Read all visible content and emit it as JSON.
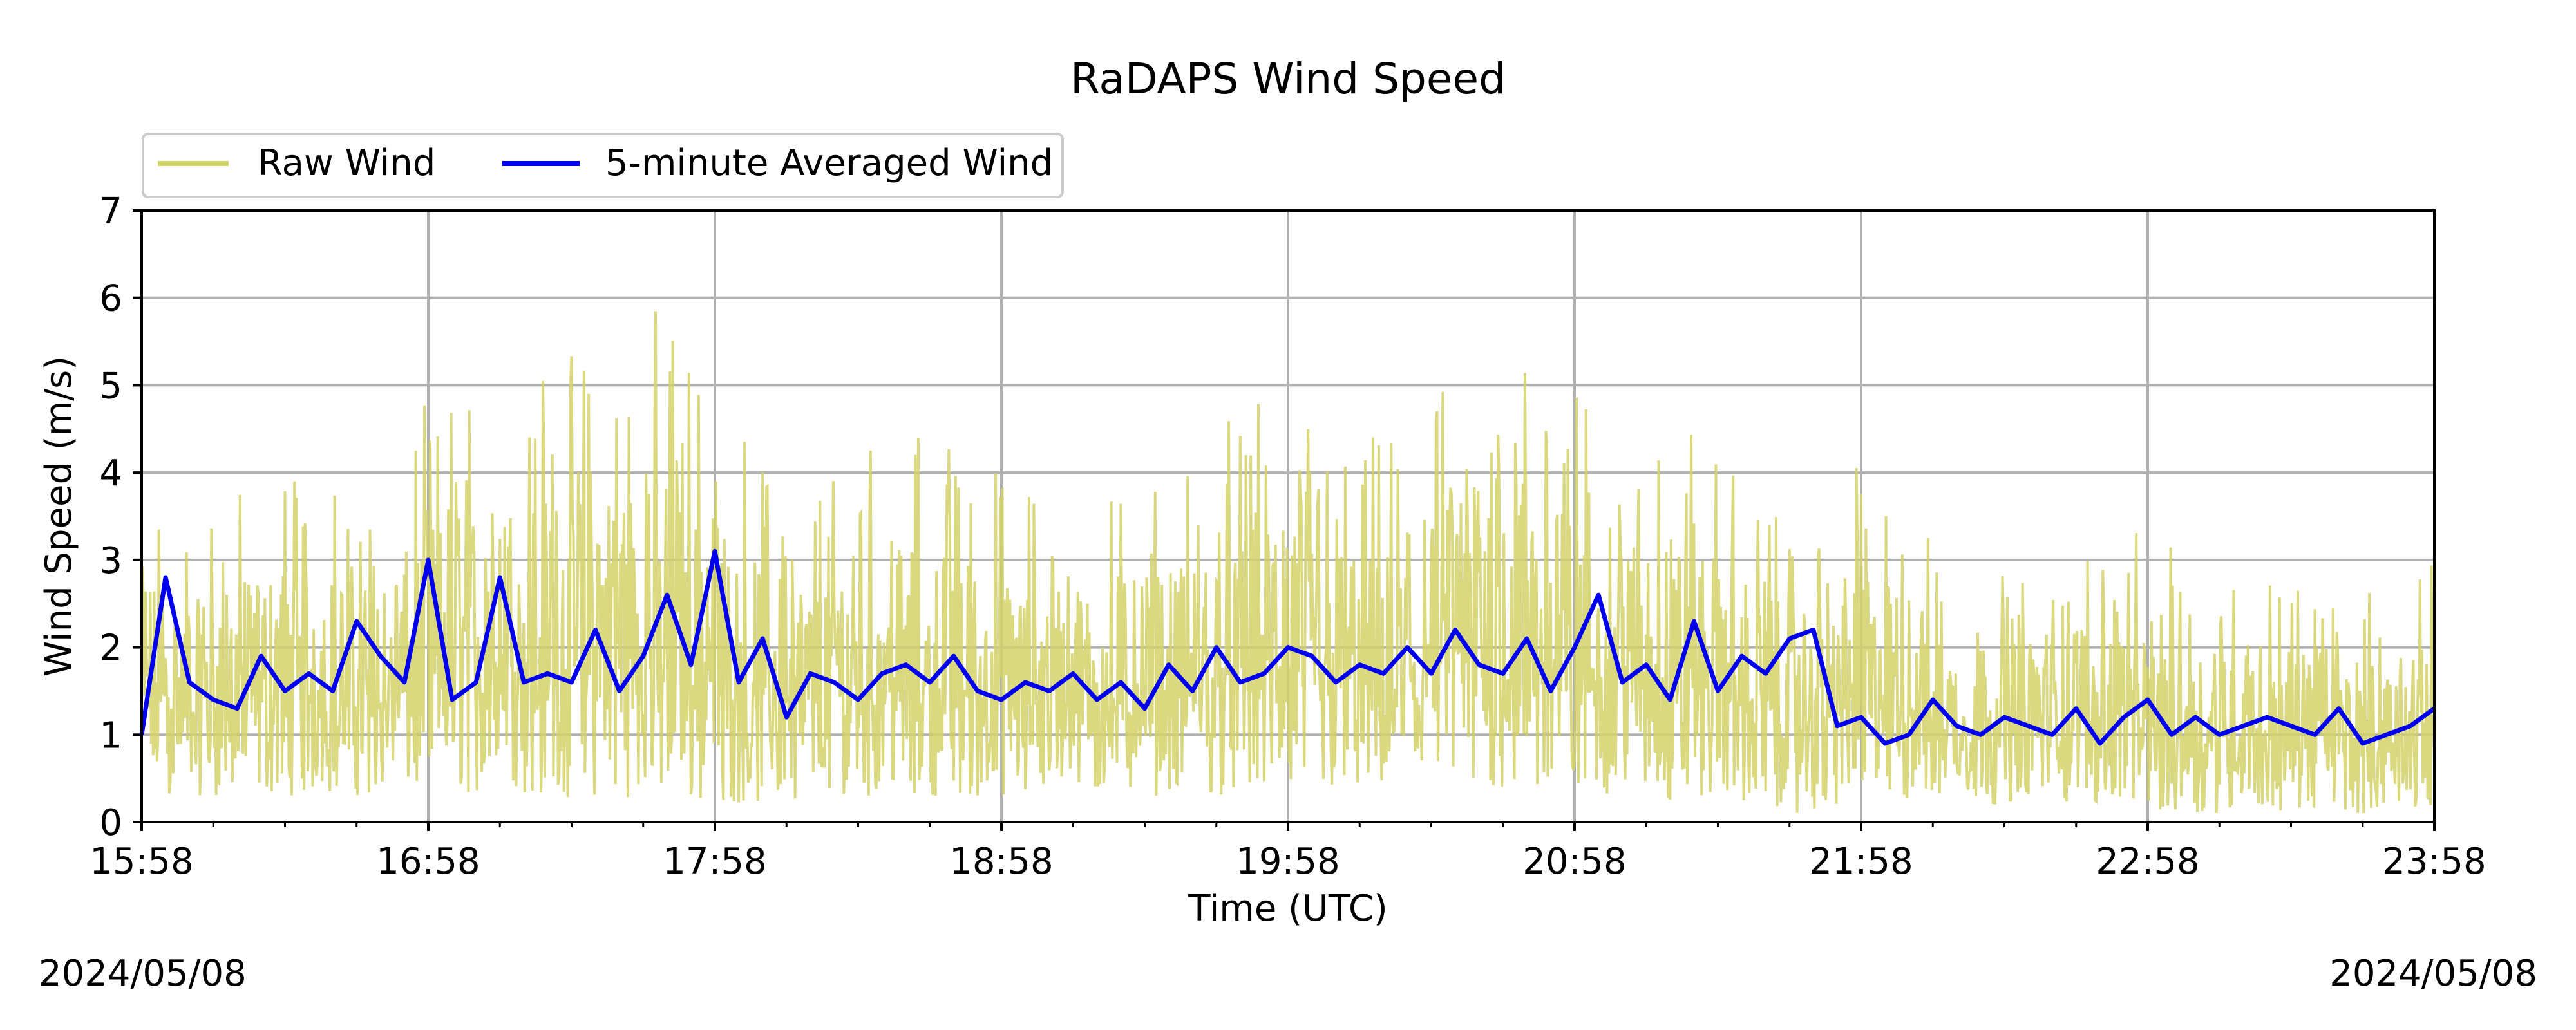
{
  "chart_data": {
    "type": "line",
    "title": "RaDAPS Wind Speed",
    "xlabel": "Time (UTC)",
    "ylabel": "Wind Speed (m/s)",
    "date_left": "2024/05/08",
    "date_right": "2024/05/08",
    "x_start": "15:58",
    "x_end": "23:58",
    "x_ticks": [
      "15:58",
      "16:58",
      "17:58",
      "18:58",
      "19:58",
      "20:58",
      "21:58",
      "22:58",
      "23:58"
    ],
    "x_major_step_minutes": 60,
    "x_minor_step_minutes": 15,
    "ylim": [
      0,
      7
    ],
    "y_ticks": [
      "0",
      "1",
      "2",
      "3",
      "4",
      "5",
      "6",
      "7"
    ],
    "grid": true,
    "legend_position": "top-left, above plot",
    "series": [
      {
        "name": "Raw Wind",
        "color": "#d4d26a",
        "style": "thin high-frequency line",
        "times": [
          "15:58",
          "16:08",
          "16:18",
          "16:28",
          "16:38",
          "16:48",
          "16:58",
          "17:08",
          "17:18",
          "17:28",
          "17:38",
          "17:48",
          "17:58",
          "18:08",
          "18:18",
          "18:28",
          "18:38",
          "18:48",
          "18:58",
          "19:08",
          "19:18",
          "19:28",
          "19:38",
          "19:48",
          "19:58",
          "20:08",
          "20:18",
          "20:28",
          "20:38",
          "20:48",
          "20:58",
          "21:08",
          "21:18",
          "21:28",
          "21:38",
          "21:48",
          "21:58",
          "22:08",
          "22:18",
          "22:28",
          "22:38",
          "22:48",
          "22:58",
          "23:08",
          "23:18",
          "23:28",
          "23:38",
          "23:48",
          "23:58"
        ],
        "max": [
          4.2,
          3.6,
          3.8,
          4.2,
          4.0,
          3.9,
          4.9,
          5.2,
          5.4,
          5.4,
          5.8,
          6.0,
          5.1,
          4.2,
          3.9,
          4.4,
          4.5,
          4.5,
          4.0,
          3.9,
          3.8,
          4.0,
          4.2,
          4.8,
          4.8,
          4.6,
          4.4,
          4.8,
          5.7,
          5.6,
          5.0,
          4.8,
          4.8,
          4.3,
          3.8,
          3.4,
          4.4,
          3.6,
          2.9,
          3.0,
          3.0,
          3.6,
          3.3,
          3.0,
          3.1,
          2.9,
          2.9,
          2.6,
          3.0
        ],
        "min": [
          0.3,
          0.3,
          0.3,
          0.3,
          0.3,
          0.3,
          0.3,
          0.3,
          0.3,
          0.2,
          0.3,
          0.2,
          0.2,
          0.2,
          0.3,
          0.3,
          0.3,
          0.3,
          0.2,
          0.3,
          0.3,
          0.3,
          0.3,
          0.3,
          0.3,
          0.3,
          0.3,
          0.3,
          0.3,
          0.3,
          0.3,
          0.3,
          0.2,
          0.3,
          0.1,
          0.1,
          0.2,
          0.2,
          0.2,
          0.2,
          0.2,
          0.2,
          0.1,
          0.1,
          0.1,
          0.1,
          0.1,
          0.1,
          0.2
        ]
      },
      {
        "name": "5-minute Averaged Wind",
        "color": "#0000ee",
        "style": "thick line",
        "times": [
          "15:58",
          "16:03",
          "16:08",
          "16:13",
          "16:18",
          "16:23",
          "16:28",
          "16:33",
          "16:38",
          "16:43",
          "16:48",
          "16:53",
          "16:58",
          "17:03",
          "17:08",
          "17:13",
          "17:18",
          "17:23",
          "17:28",
          "17:33",
          "17:38",
          "17:43",
          "17:48",
          "17:53",
          "17:58",
          "18:03",
          "18:08",
          "18:13",
          "18:18",
          "18:23",
          "18:28",
          "18:33",
          "18:38",
          "18:43",
          "18:48",
          "18:53",
          "18:58",
          "19:03",
          "19:08",
          "19:13",
          "19:18",
          "19:23",
          "19:28",
          "19:33",
          "19:38",
          "19:43",
          "19:48",
          "19:53",
          "19:58",
          "20:03",
          "20:08",
          "20:13",
          "20:18",
          "20:23",
          "20:28",
          "20:33",
          "20:38",
          "20:43",
          "20:48",
          "20:53",
          "20:58",
          "21:03",
          "21:08",
          "21:13",
          "21:18",
          "21:23",
          "21:28",
          "21:33",
          "21:38",
          "21:43",
          "21:48",
          "21:53",
          "21:58",
          "22:03",
          "22:08",
          "22:13",
          "22:18",
          "22:23",
          "22:28",
          "22:33",
          "22:38",
          "22:43",
          "22:48",
          "22:53",
          "22:58",
          "23:03",
          "23:08",
          "23:13",
          "23:18",
          "23:23",
          "23:28",
          "23:33",
          "23:38",
          "23:43",
          "23:48",
          "23:53",
          "23:58"
        ],
        "values": [
          1.0,
          2.8,
          1.6,
          1.4,
          1.3,
          1.9,
          1.5,
          1.7,
          1.5,
          2.3,
          1.9,
          1.6,
          3.0,
          1.4,
          1.6,
          2.8,
          1.6,
          1.7,
          1.6,
          2.2,
          1.5,
          1.9,
          2.6,
          1.8,
          3.1,
          1.6,
          2.1,
          1.2,
          1.7,
          1.6,
          1.4,
          1.7,
          1.8,
          1.6,
          1.9,
          1.5,
          1.4,
          1.6,
          1.5,
          1.7,
          1.4,
          1.6,
          1.3,
          1.8,
          1.5,
          2.0,
          1.6,
          1.7,
          2.0,
          1.9,
          1.6,
          1.8,
          1.7,
          2.0,
          1.7,
          2.2,
          1.8,
          1.7,
          2.1,
          1.5,
          2.0,
          2.6,
          1.6,
          1.8,
          1.4,
          2.3,
          1.5,
          1.9,
          1.7,
          2.1,
          2.2,
          1.1,
          1.2,
          0.9,
          1.0,
          1.4,
          1.1,
          1.0,
          1.2,
          1.1,
          1.0,
          1.3,
          0.9,
          1.2,
          1.4,
          1.0,
          1.2,
          1.0,
          1.1,
          1.2,
          1.1,
          1.0,
          1.3,
          0.9,
          1.0,
          1.1,
          1.3
        ]
      }
    ]
  }
}
